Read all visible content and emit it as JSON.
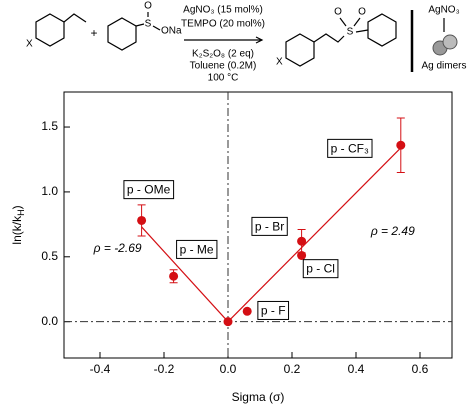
{
  "scheme": {
    "reactant_x": "X",
    "plus": "+",
    "sulfur": "S",
    "oxygen": "O",
    "salt": "ONa",
    "conditions_above": [
      "AgNO₃ (15 mol%)",
      "TEMPO (20 mol%)"
    ],
    "conditions_below": [
      "K₂S₂O₈ (2 eq)",
      "Toluene (0.2M)",
      "100 °C"
    ],
    "product_x": "X",
    "product_s": "S",
    "product_o": [
      "O",
      "O"
    ],
    "catalyst": "AgNO₃",
    "catalyst_label": "Ag dimers"
  },
  "chart_data": {
    "type": "scatter",
    "color": "#d40f14",
    "x_label": "Sigma (σ)",
    "y_label_parts": [
      "ln(k/k",
      "H",
      ")"
    ],
    "x": [
      -0.27,
      -0.17,
      0,
      0.06,
      0.23,
      0.23,
      0.54
    ],
    "values": [
      0.78,
      0.35,
      0,
      0.08,
      0.62,
      0.51,
      1.36
    ],
    "errors": [
      0.12,
      0.05,
      null,
      null,
      0.09,
      null,
      0.21
    ],
    "point_labels": [
      "p - OMe",
      "p - Me",
      null,
      "p - F",
      "p - Br",
      "p - Cl",
      "p - CF₃"
    ],
    "fits": [
      {
        "label": "ρ = -2.69",
        "x": [
          -0.27,
          0
        ],
        "values": [
          0.73,
          0
        ]
      },
      {
        "label": "ρ = 2.49",
        "x": [
          0,
          0.54
        ],
        "values": [
          0,
          1.34
        ]
      }
    ],
    "xlim": [
      -0.5125,
      0.7
    ],
    "ylim": [
      -0.28,
      1.77
    ],
    "xticks": [
      -0.4,
      -0.2,
      {
        "value": 0,
        "label": "0.0"
      },
      0.2,
      0.4,
      0.6
    ],
    "yticks": [
      {
        "value": 0,
        "label": "0.0"
      },
      0.5,
      {
        "value": 1,
        "label": "1.0"
      },
      1.5
    ],
    "zero_lines": true
  }
}
